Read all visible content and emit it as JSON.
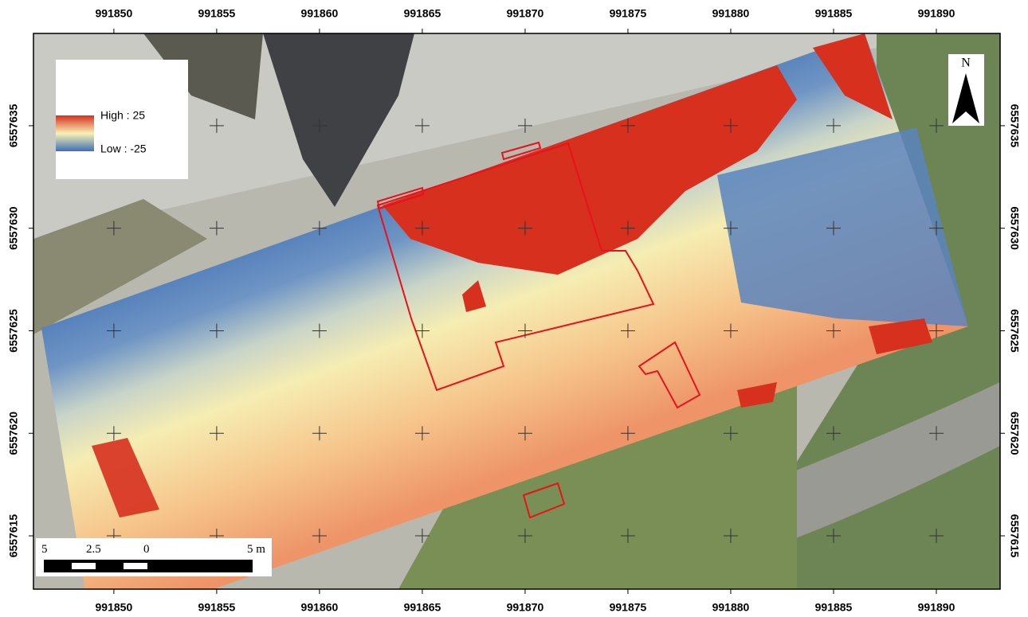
{
  "map": {
    "xlim": [
      991846.09,
      991893.1
    ],
    "ylim": [
      6557612.4,
      6557639.5
    ],
    "x_ticks": [
      991850,
      991855,
      991860,
      991865,
      991870,
      991875,
      991880,
      991885,
      991890
    ],
    "y_ticks": [
      6557615,
      6557620,
      6557625,
      6557630,
      6557635
    ],
    "legend": {
      "high": "High : 25",
      "low": "Low : -25"
    },
    "north_arrow": "N",
    "scale_bar": {
      "labels": [
        "5",
        "2.5",
        "0",
        "5 m"
      ]
    }
  }
}
